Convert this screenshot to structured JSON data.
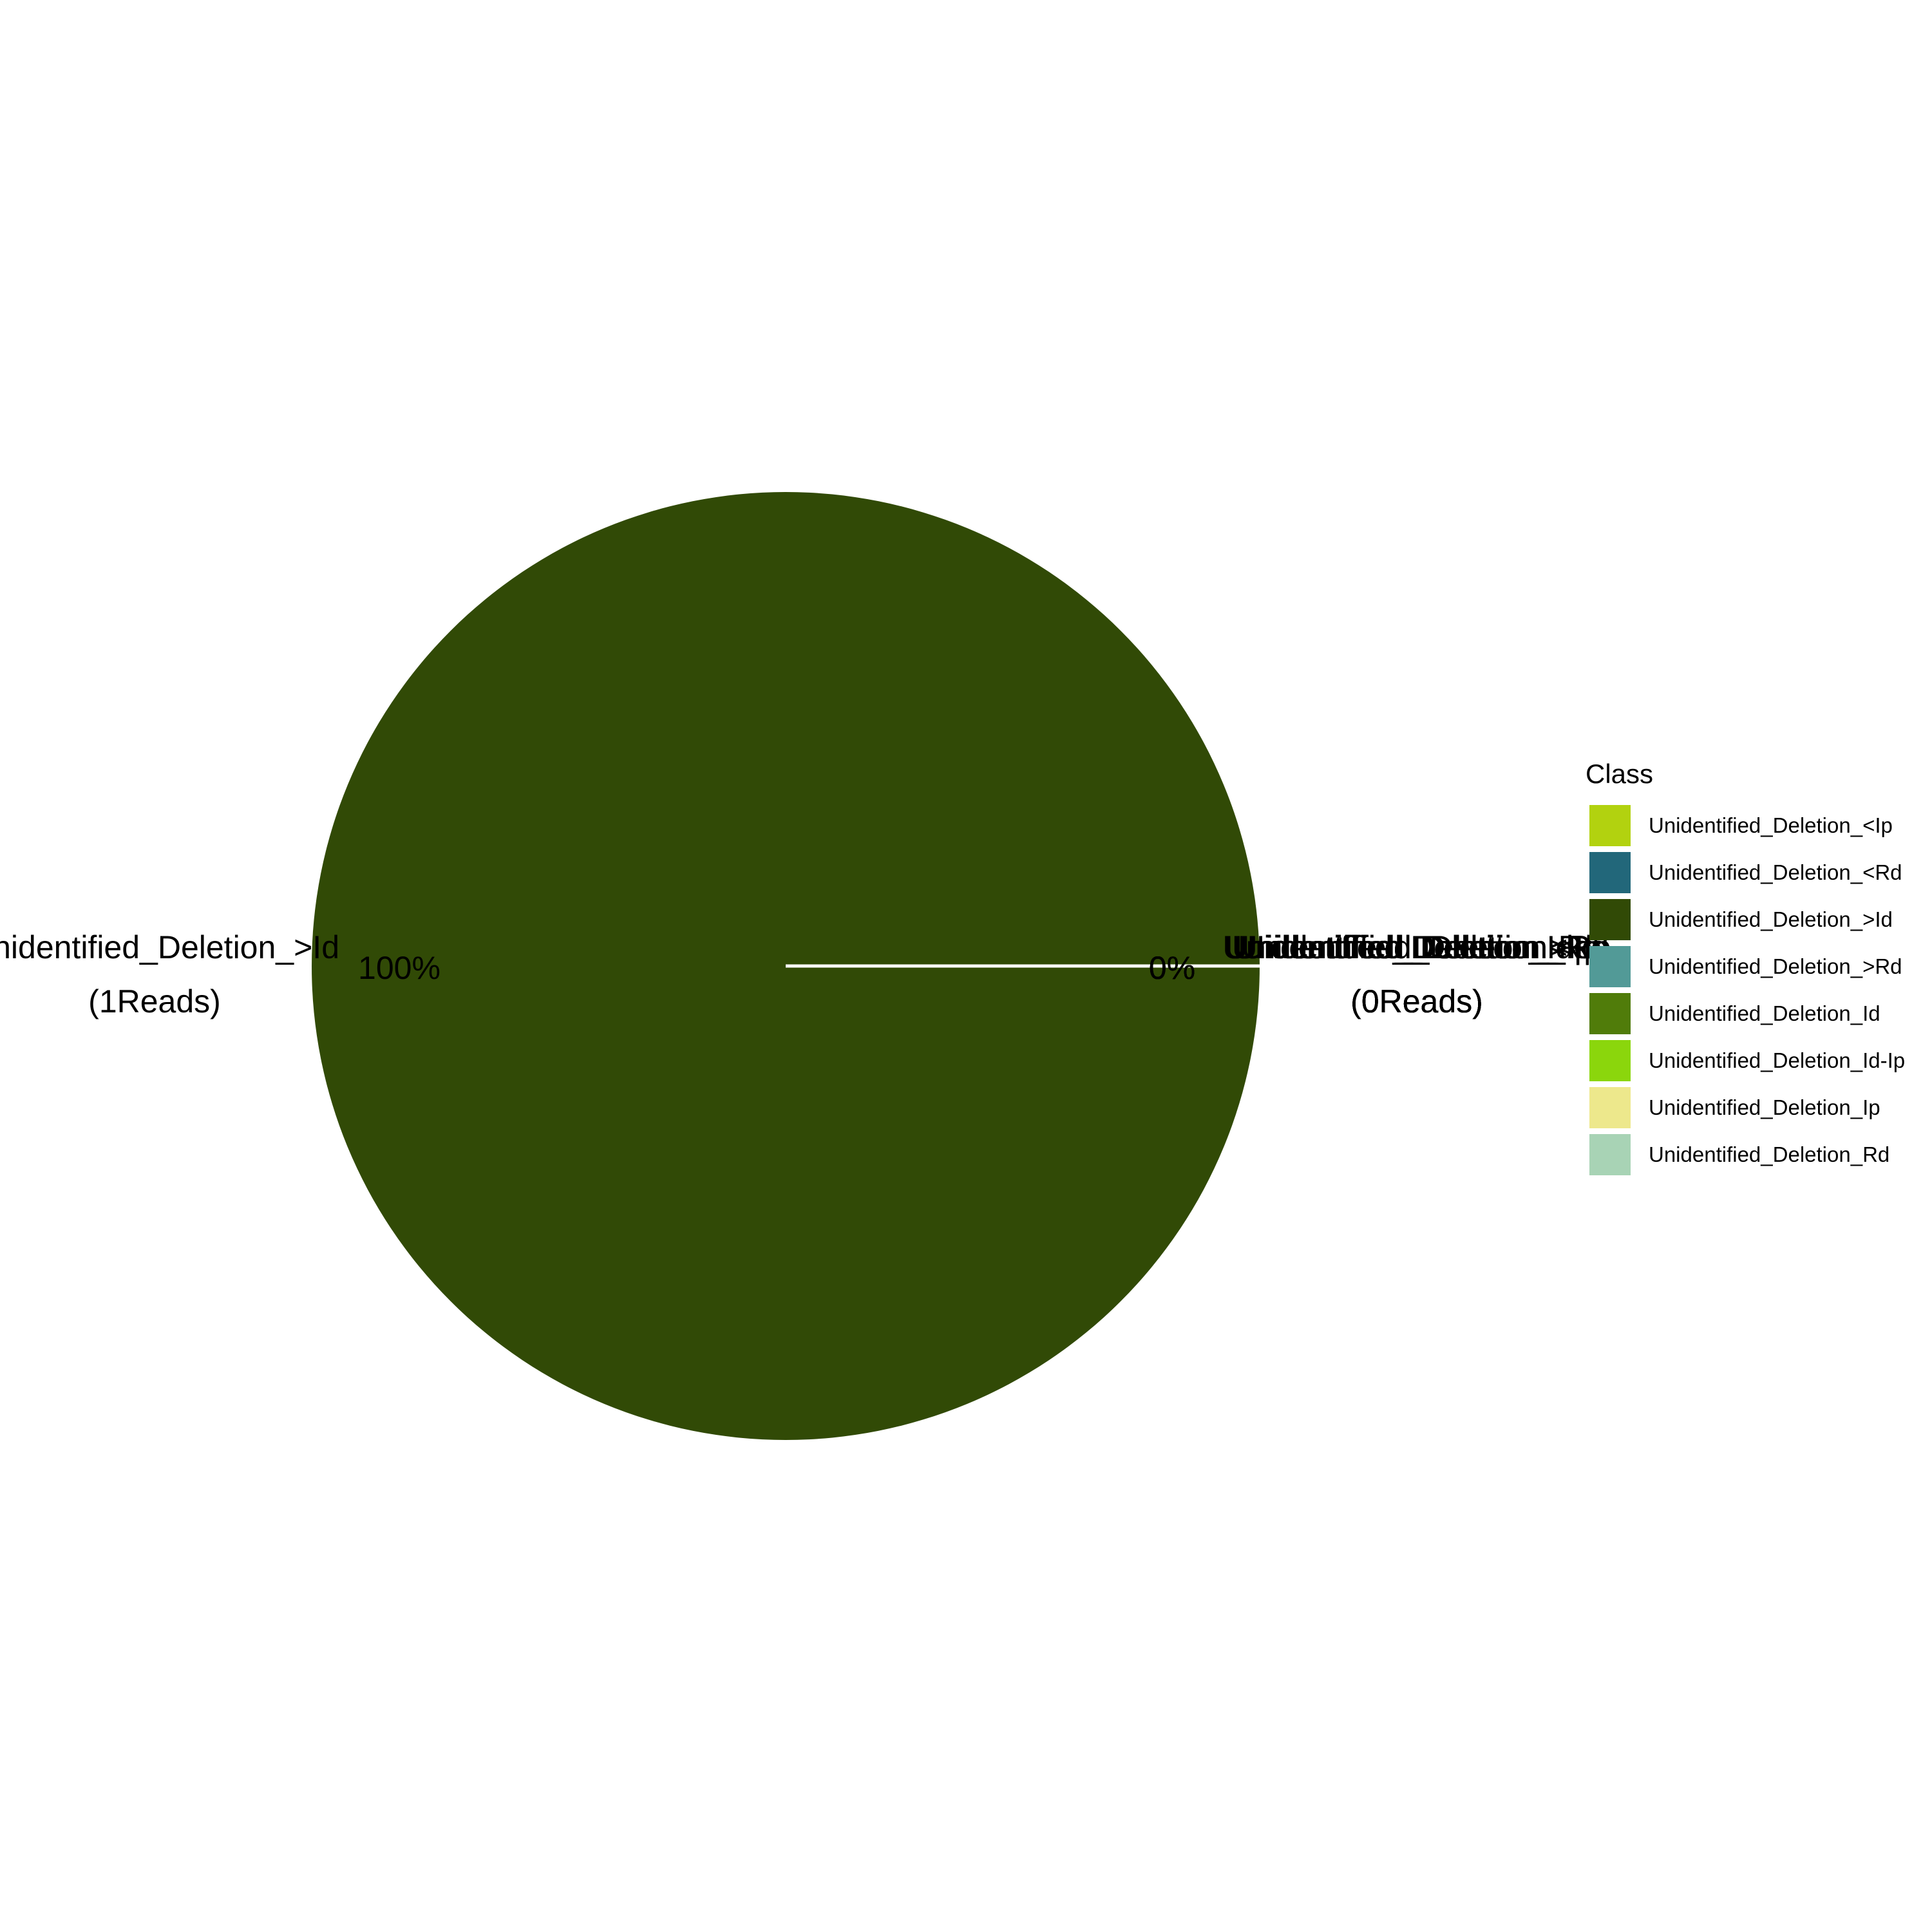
{
  "chart_data": {
    "type": "pie",
    "legend_title": "Class",
    "legend_position": "right",
    "categories": [
      "Unidentified_Deletion_<Ip",
      "Unidentified_Deletion_<Rd",
      "Unidentified_Deletion_>Id",
      "Unidentified_Deletion_>Rd",
      "Unidentified_Deletion_Id",
      "Unidentified_Deletion_Id-Ip",
      "Unidentified_Deletion_Ip",
      "Unidentified_Deletion_Rd"
    ],
    "values": [
      0,
      0,
      1,
      0,
      0,
      0,
      0,
      0
    ],
    "colors": [
      "#b2d20f",
      "#22677a",
      "#314a06",
      "#529a97",
      "#507c0a",
      "#8bd60c",
      "#ede88c",
      "#a8d3b5"
    ],
    "slice_labels": [
      {
        "category": "Unidentified_Deletion_>Id",
        "name_text": "Unidentified_Deletion_>Id",
        "reads_text": "(1Reads)",
        "percent_text": "100%"
      },
      {
        "category": "Unidentified_Deletion_<Ip",
        "name_text": "Unidentified_Deletion_<Ip",
        "reads_text": "(0Reads)",
        "percent_text": "0%"
      },
      {
        "category": "Unidentified_Deletion_<Rd",
        "name_text": "Unidentified_Deletion_<Rd",
        "reads_text": "(0Reads)",
        "percent_text": "0%"
      },
      {
        "category": "Unidentified_Deletion_>Rd",
        "name_text": "Unidentified_Deletion_>Rd",
        "reads_text": "(0Reads)",
        "percent_text": "0%"
      },
      {
        "category": "Unidentified_Deletion_Id",
        "name_text": "Unidentified_Deletion_Id",
        "reads_text": "(0Reads)",
        "percent_text": "0%"
      },
      {
        "category": "Unidentified_Deletion_Id-Ip",
        "name_text": "Unidentified_Deletion_Id-Ip",
        "reads_text": "(0Reads)",
        "percent_text": "0%"
      },
      {
        "category": "Unidentified_Deletion_Ip",
        "name_text": "Unidentified_Deletion_Ip",
        "reads_text": "(0Reads)",
        "percent_text": "0%"
      },
      {
        "category": "Unidentified_Deletion_Rd",
        "name_text": "Unidentified_Deletion_Rd",
        "reads_text": "(0Reads)",
        "percent_text": "0%"
      }
    ]
  }
}
